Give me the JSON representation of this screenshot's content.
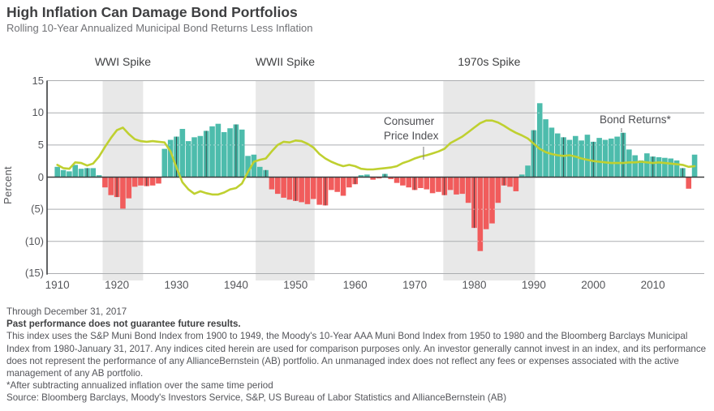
{
  "title": "High Inflation Can Damage Bond Portfolios",
  "subtitle": "Rolling 10-Year Annualized Municipal Bond Returns Less Inflation",
  "chart_data": {
    "type": "bar",
    "start_year": 1910,
    "end_year": 2017,
    "ylabel": "Percent",
    "ylim": [
      -15,
      15
    ],
    "yticks": [
      {
        "value": 15,
        "label": "15"
      },
      {
        "value": 10,
        "label": "10"
      },
      {
        "value": 5,
        "label": "5"
      },
      {
        "value": 0,
        "label": "0"
      },
      {
        "value": -5,
        "label": "(5)"
      },
      {
        "value": -10,
        "label": "(10)"
      },
      {
        "value": -15,
        "label": "(15)"
      }
    ],
    "xticks": [
      1910,
      1920,
      1930,
      1940,
      1950,
      1960,
      1970,
      1980,
      1990,
      2000,
      2010
    ],
    "series": [
      {
        "name": "Bond Returns*",
        "type": "bar",
        "values": [
          1.6,
          1.1,
          0.9,
          1.9,
          1.3,
          1.4,
          1.4,
          0.3,
          -1.6,
          -2.8,
          -3.1,
          -4.9,
          -3.3,
          -1.5,
          -1.3,
          -1.4,
          -1.3,
          -1.0,
          4.4,
          5.8,
          6.3,
          7.5,
          5.6,
          6.2,
          6.4,
          7.2,
          7.9,
          8.3,
          7.0,
          7.6,
          8.2,
          7.4,
          3.3,
          3.5,
          1.6,
          1.1,
          -1.9,
          -2.6,
          -3.2,
          -3.5,
          -3.7,
          -3.9,
          -4.2,
          -3.4,
          -4.3,
          -4.4,
          -2.0,
          -2.3,
          -2.9,
          -1.6,
          -1.1,
          0.3,
          0.4,
          -0.4,
          -0.2,
          0.5,
          -0.3,
          -0.9,
          -1.3,
          -1.6,
          -2.0,
          -1.7,
          -1.9,
          -2.5,
          -2.3,
          -2.8,
          -2.0,
          -2.7,
          -2.6,
          -4.0,
          -7.9,
          -11.5,
          -8.1,
          -7.2,
          -4.0,
          -1.3,
          -1.5,
          -2.2,
          0.4,
          1.8,
          7.3,
          11.5,
          9.0,
          7.7,
          6.8,
          6.2,
          5.8,
          6.4,
          5.7,
          6.6,
          5.5,
          6.1,
          5.8,
          6.0,
          6.3,
          6.9,
          4.3,
          3.4,
          2.6,
          3.7,
          3.2,
          3.1,
          3.0,
          2.9,
          2.6,
          1.4,
          -1.8,
          3.5
        ]
      },
      {
        "name": "Consumer Price Index",
        "type": "line",
        "values": [
          1.9,
          1.4,
          1.3,
          2.3,
          2.2,
          1.8,
          2.1,
          3.2,
          4.7,
          6.1,
          7.3,
          7.7,
          6.7,
          5.9,
          5.6,
          5.5,
          5.6,
          5.5,
          5.4,
          4.0,
          1.5,
          -0.8,
          -1.9,
          -2.6,
          -2.2,
          -2.5,
          -2.7,
          -2.7,
          -2.4,
          -1.9,
          -1.7,
          -1.0,
          0.8,
          2.4,
          2.7,
          2.9,
          4.0,
          5.0,
          5.5,
          5.4,
          5.7,
          5.6,
          5.2,
          4.6,
          3.6,
          2.9,
          2.4,
          2.0,
          1.7,
          1.9,
          1.7,
          1.3,
          1.2,
          1.2,
          1.3,
          1.4,
          1.5,
          1.7,
          2.2,
          2.5,
          2.9,
          3.2,
          3.4,
          3.7,
          4.0,
          4.4,
          5.3,
          5.8,
          6.3,
          7.0,
          7.7,
          8.4,
          8.8,
          8.8,
          8.5,
          8.0,
          7.4,
          6.9,
          6.5,
          6.0,
          5.2,
          4.4,
          3.9,
          3.6,
          3.4,
          3.3,
          3.4,
          3.2,
          2.9,
          2.7,
          2.5,
          2.4,
          2.3,
          2.2,
          2.2,
          2.2,
          2.3,
          2.3,
          2.4,
          2.3,
          2.2,
          2.3,
          2.2,
          2.1,
          2.0,
          1.9,
          1.6,
          1.7
        ]
      }
    ],
    "bands": [
      {
        "label": "WWI Spike",
        "from": 1917.6,
        "to": 1924.4
      },
      {
        "label": "WWII Spike",
        "from": 1943.3,
        "to": 1953.2
      },
      {
        "label": "1970s Spike",
        "from": 1974.8,
        "to": 1990.2
      }
    ],
    "annotations": [
      {
        "id": "cpi-label",
        "lines": [
          "Consumer",
          "Price Index"
        ],
        "x": 473,
        "y": 141,
        "pointer": {
          "x": 522,
          "y1": 181,
          "y2": 197
        }
      },
      {
        "id": "bond-returns-label",
        "lines": [
          "Bond Returns*"
        ],
        "x": 739,
        "y": 139,
        "pointer": {
          "x": 766,
          "y1": 158,
          "y2": 163
        }
      }
    ],
    "colors": {
      "positive_bar": "#4dbcac",
      "negative_bar": "#f15c5c",
      "cpi_line": "#bfd030",
      "band": "#e8e8e8",
      "gridline": "#abadb0",
      "axis": "#3b3c3e",
      "text": "#55565a"
    },
    "grid": "horizontal, 5-unit intervals; dark 5-year tick lines visible across bars",
    "legend_position": "inline annotations"
  },
  "footer": {
    "lines": [
      {
        "text": "Through December 31, 2017",
        "bold": false
      },
      {
        "text": "Past performance does not guarantee future results.",
        "bold": true
      },
      {
        "text": "This index uses the S&P Muni Bond Index from 1900 to 1949, the Moody's 10-Year AAA Muni Bond Index from 1950 to 1980 and the Bloomberg Barclays Municipal",
        "bold": false
      },
      {
        "text": "Index from 1980-January 31, 2017. Any indices cited herein are used for comparison purposes only. An investor generally cannot invest in an index, and its performance",
        "bold": false
      },
      {
        "text": "does not represent the performance of any AllianceBernstein (AB) portfolio. An unmanaged index does not reflect any fees or expenses associated with the active",
        "bold": false
      },
      {
        "text": "management of any AB portfolio.",
        "bold": false
      },
      {
        "text": "*After subtracting annualized inflation over the same time period",
        "bold": false
      },
      {
        "text": "Source: Bloomberg Barclays, Moody's Investors Service, S&P, US Bureau of Labor Statistics and AllianceBernstein (AB)",
        "bold": false
      }
    ]
  }
}
